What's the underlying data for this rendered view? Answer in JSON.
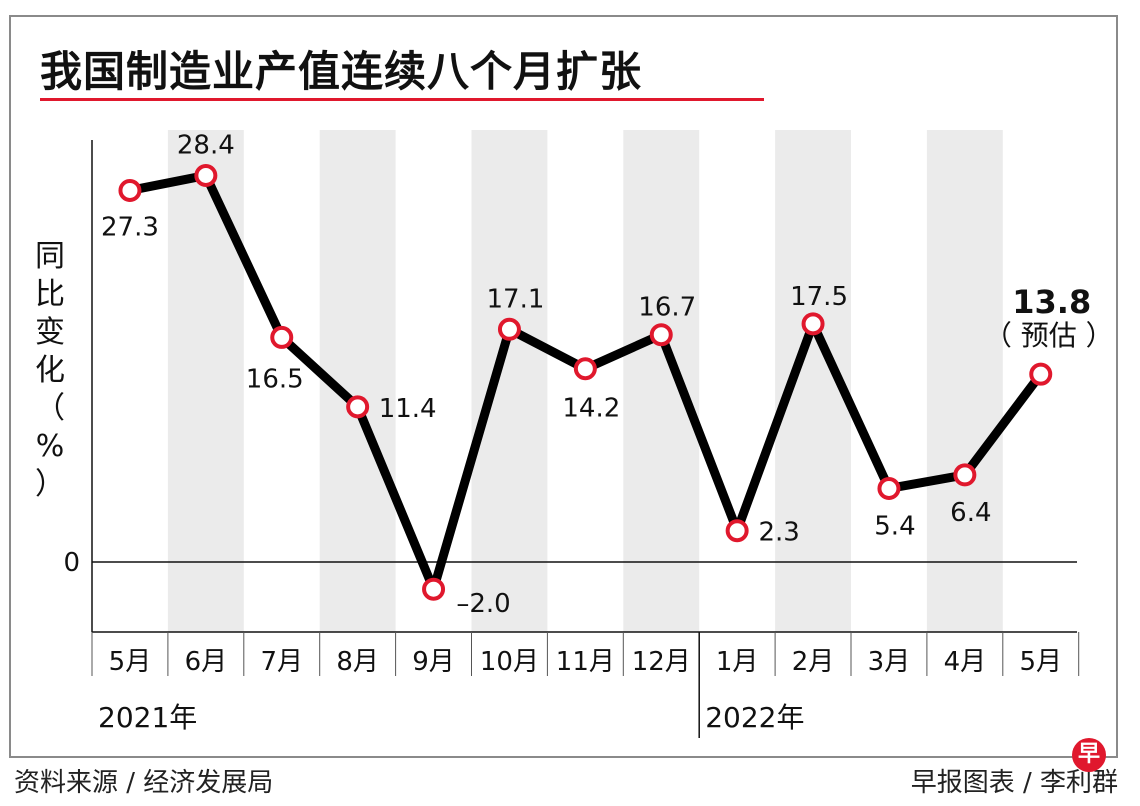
{
  "title": "我国制造业产值连续八个月扩张",
  "ylabel_chars": [
    "同",
    "比",
    "变",
    "化",
    "（",
    "%",
    "）"
  ],
  "source": "资料来源 / 经济发展局",
  "credit": "早报图表 / 李利群",
  "logo_char": "早",
  "colors": {
    "accent": "#e0182d",
    "line": "#000000",
    "band": "#ebebeb"
  },
  "chart_data": {
    "type": "line",
    "title": "我国制造业产值连续八个月扩张",
    "ylabel": "同比变化（%）",
    "xlabel": "",
    "categories": [
      "5月",
      "6月",
      "7月",
      "8月",
      "9月",
      "10月",
      "11月",
      "12月",
      "1月",
      "2月",
      "3月",
      "4月",
      "5月"
    ],
    "years": [
      {
        "label": "2021年",
        "start": 0,
        "end": 7
      },
      {
        "label": "2022年",
        "start": 8,
        "end": 12
      }
    ],
    "series": [
      {
        "name": "同比变化",
        "values": [
          27.3,
          28.4,
          16.5,
          11.4,
          -2.0,
          17.1,
          14.2,
          16.7,
          2.3,
          17.5,
          5.4,
          6.4,
          13.8
        ],
        "labels": [
          "27.3",
          "28.4",
          "16.5",
          "11.4",
          "–2.0",
          "17.1",
          "14.2",
          "16.7",
          "2.3",
          "17.5",
          "5.4",
          "6.4",
          "13.8"
        ]
      }
    ],
    "annotation": "（ 预估 ）",
    "zero_label": "0",
    "ylim": [
      -5,
      31
    ],
    "grid": false
  }
}
